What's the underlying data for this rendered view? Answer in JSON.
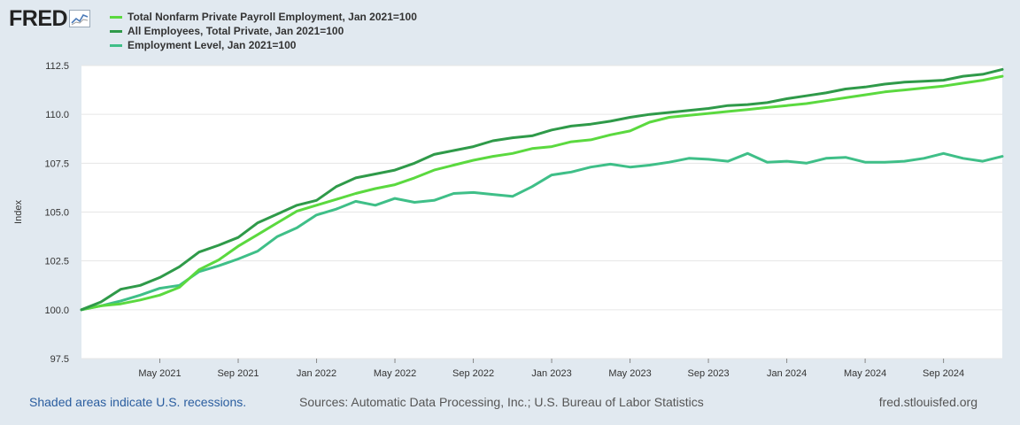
{
  "brand": {
    "logo_text": "FRED"
  },
  "footer": {
    "recession_note": "Shaded areas indicate U.S. recessions.",
    "sources": "Sources: Automatic Data Processing, Inc.; U.S. Bureau of Labor Statistics",
    "site": "fred.stlouisfed.org"
  },
  "chart_data": {
    "type": "line",
    "title": "",
    "xlabel": "",
    "ylabel": "Index",
    "ylim": [
      97.5,
      112.5
    ],
    "yticks": [
      "112.5",
      "110.0",
      "107.5",
      "105.0",
      "102.5",
      "100.0",
      "97.5"
    ],
    "ytick_values": [
      112.5,
      110.0,
      107.5,
      105.0,
      102.5,
      100.0,
      97.5
    ],
    "xticks": [
      "May 2021",
      "Sep 2021",
      "Jan 2022",
      "May 2022",
      "Sep 2022",
      "Jan 2023",
      "May 2023",
      "Sep 2023",
      "Jan 2024",
      "May 2024",
      "Sep 2024"
    ],
    "xtick_index": [
      4,
      8,
      12,
      16,
      20,
      24,
      28,
      32,
      36,
      40,
      44
    ],
    "n_points": 48,
    "x_start": "Jan 2021",
    "x_end": "Dec 2024",
    "series": [
      {
        "name": "Total Nonfarm Private Payroll Employment, Jan 2021=100",
        "color": "#5bd93f",
        "values": [
          100.0,
          100.2,
          100.3,
          100.5,
          100.75,
          101.15,
          102.05,
          102.55,
          103.25,
          103.85,
          104.45,
          105.05,
          105.35,
          105.65,
          105.95,
          106.2,
          106.4,
          106.75,
          107.15,
          107.4,
          107.65,
          107.85,
          108.0,
          108.25,
          108.35,
          108.6,
          108.7,
          108.95,
          109.15,
          109.6,
          109.85,
          109.95,
          110.05,
          110.15,
          110.25,
          110.35,
          110.45,
          110.55,
          110.7,
          110.85,
          111.0,
          111.15,
          111.25,
          111.35,
          111.45,
          111.6,
          111.75,
          111.95
        ]
      },
      {
        "name": "All Employees, Total Private, Jan 2021=100",
        "color": "#2f9a49",
        "values": [
          100.0,
          100.4,
          101.05,
          101.25,
          101.65,
          102.2,
          102.95,
          103.3,
          103.7,
          104.45,
          104.9,
          105.35,
          105.6,
          106.3,
          106.75,
          106.95,
          107.15,
          107.5,
          107.95,
          108.15,
          108.35,
          108.65,
          108.8,
          108.9,
          109.2,
          109.4,
          109.5,
          109.65,
          109.85,
          110.0,
          110.1,
          110.2,
          110.3,
          110.45,
          110.5,
          110.6,
          110.8,
          110.95,
          111.1,
          111.3,
          111.4,
          111.55,
          111.65,
          111.7,
          111.75,
          111.95,
          112.05,
          112.3
        ]
      },
      {
        "name": "Employment Level, Jan 2021=100",
        "color": "#3fbf88",
        "values": [
          100.0,
          100.2,
          100.45,
          100.75,
          101.1,
          101.25,
          101.95,
          102.25,
          102.6,
          103.0,
          103.75,
          104.2,
          104.85,
          105.15,
          105.55,
          105.35,
          105.7,
          105.5,
          105.6,
          105.95,
          106.0,
          105.9,
          105.8,
          106.3,
          106.9,
          107.05,
          107.3,
          107.45,
          107.3,
          107.4,
          107.55,
          107.75,
          107.7,
          107.6,
          108.0,
          107.55,
          107.6,
          107.5,
          107.75,
          107.8,
          107.55,
          107.55,
          107.6,
          107.75,
          108.0,
          107.75,
          107.6,
          107.85
        ]
      }
    ]
  }
}
